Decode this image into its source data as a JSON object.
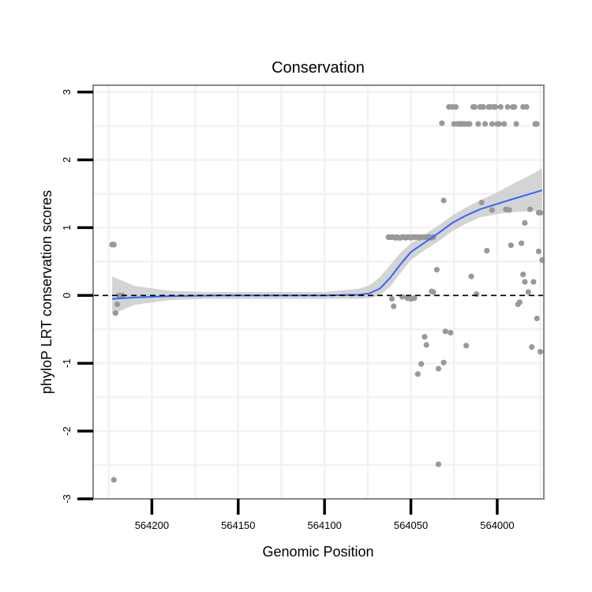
{
  "chart_data": {
    "type": "scatter",
    "title": "Conservation",
    "xlabel": "Genomic Position",
    "ylabel": "phyloP LRT conservation scores",
    "x_reversed": true,
    "xlim": [
      563973,
      564234
    ],
    "ylim": [
      -3,
      3.1
    ],
    "xticks": [
      564200,
      564150,
      564100,
      564050,
      564000
    ],
    "xtick_labels": [
      "564200",
      "564150",
      "564100",
      "564050",
      "564000"
    ],
    "yticks": [
      -3,
      -2,
      -1,
      0,
      1,
      2,
      3
    ],
    "ytick_labels": [
      "-3",
      "-2",
      "-1",
      "0",
      "1",
      "2",
      "3"
    ],
    "reference_line": {
      "y": 0,
      "style": "dashed"
    },
    "colors": {
      "points": "#999999",
      "smooth_line": "#3366ff",
      "ribbon": "#cccccc",
      "panel_border": "#888888",
      "grid": "#f2f2f2"
    },
    "points": [
      [
        564223,
        0.75
      ],
      [
        564222,
        0.75
      ],
      [
        564222,
        -2.72
      ],
      [
        564221,
        -0.26
      ],
      [
        564220,
        -0.13
      ],
      [
        564219,
        0.0
      ],
      [
        564218,
        0.0
      ],
      [
        564217,
        0.0
      ],
      [
        564063,
        0.86
      ],
      [
        564062,
        0.86
      ],
      [
        564061,
        0.86
      ],
      [
        564060,
        0.86
      ],
      [
        564059,
        0.85
      ],
      [
        564058,
        0.86
      ],
      [
        564057,
        0.85
      ],
      [
        564056,
        0.85
      ],
      [
        564055,
        0.86
      ],
      [
        564054,
        0.86
      ],
      [
        564053,
        0.85
      ],
      [
        564052,
        0.86
      ],
      [
        564051,
        0.86
      ],
      [
        564050,
        0.85
      ],
      [
        564049,
        0.86
      ],
      [
        564048,
        0.86
      ],
      [
        564047,
        0.86
      ],
      [
        564046,
        0.86
      ],
      [
        564045,
        0.85
      ],
      [
        564044,
        0.86
      ],
      [
        564043,
        0.86
      ],
      [
        564042,
        0.86
      ],
      [
        564041,
        0.86
      ],
      [
        564040,
        0.86
      ],
      [
        564039,
        0.86
      ],
      [
        564038,
        0.85
      ],
      [
        564037,
        0.86
      ],
      [
        564061,
        -0.05
      ],
      [
        564060,
        -0.16
      ],
      [
        564055,
        -0.02
      ],
      [
        564052,
        -0.04
      ],
      [
        564050,
        -0.05
      ],
      [
        564048,
        -0.04
      ],
      [
        564046,
        -1.16
      ],
      [
        564044,
        -1.01
      ],
      [
        564042,
        -0.61
      ],
      [
        564041,
        -0.73
      ],
      [
        564038,
        0.06
      ],
      [
        564037,
        0.05
      ],
      [
        564035,
        0.38
      ],
      [
        564034,
        -1.08
      ],
      [
        564034,
        -2.49
      ],
      [
        564032,
        2.54
      ],
      [
        564031,
        1.4
      ],
      [
        564031,
        -0.99
      ],
      [
        564030,
        -0.53
      ],
      [
        564028,
        2.78
      ],
      [
        564027,
        -0.55
      ],
      [
        564026,
        2.78
      ],
      [
        564025,
        2.53
      ],
      [
        564024,
        2.78
      ],
      [
        564023,
        2.53
      ],
      [
        564022,
        2.53
      ],
      [
        564021,
        2.53
      ],
      [
        564020,
        2.53
      ],
      [
        564019,
        2.53
      ],
      [
        564018,
        -0.74
      ],
      [
        564017,
        2.53
      ],
      [
        564016,
        2.53
      ],
      [
        564015,
        0.28
      ],
      [
        564014,
        2.78
      ],
      [
        564013,
        2.78
      ],
      [
        564012,
        0.02
      ],
      [
        564011,
        2.53
      ],
      [
        564010,
        2.78
      ],
      [
        564009,
        2.78
      ],
      [
        564009,
        1.37
      ],
      [
        564008,
        2.78
      ],
      [
        564007,
        2.53
      ],
      [
        564006,
        0.66
      ],
      [
        564005,
        2.78
      ],
      [
        564004,
        2.78
      ],
      [
        564003,
        2.53
      ],
      [
        564003,
        1.26
      ],
      [
        564002,
        2.78
      ],
      [
        564001,
        2.78
      ],
      [
        564000,
        2.53
      ],
      [
        563999,
        2.53
      ],
      [
        563998,
        2.78
      ],
      [
        563996,
        2.53
      ],
      [
        563995,
        1.27
      ],
      [
        563994,
        2.78
      ],
      [
        563993,
        1.26
      ],
      [
        563992,
        0.74
      ],
      [
        563991,
        2.78
      ],
      [
        563990,
        2.78
      ],
      [
        563989,
        2.53
      ],
      [
        563988,
        -0.13
      ],
      [
        563987,
        -0.1
      ],
      [
        563986,
        0.77
      ],
      [
        563985,
        0.31
      ],
      [
        563985,
        2.78
      ],
      [
        563984,
        1.07
      ],
      [
        563984,
        0.2
      ],
      [
        563983,
        2.78
      ],
      [
        563982,
        0.05
      ],
      [
        563981,
        1.27
      ],
      [
        563980,
        -0.76
      ],
      [
        563979,
        0.2
      ],
      [
        563978,
        2.53
      ],
      [
        563978,
        2.53
      ],
      [
        563977,
        -0.34
      ],
      [
        563977,
        2.53
      ],
      [
        563976,
        1.22
      ],
      [
        563976,
        0.65
      ],
      [
        563975,
        1.22
      ],
      [
        563975,
        -0.83
      ],
      [
        563974,
        0.52
      ]
    ],
    "smooth_line": [
      [
        564223,
        -0.05
      ],
      [
        564210,
        -0.03
      ],
      [
        564190,
        -0.01
      ],
      [
        564160,
        0.0
      ],
      [
        564130,
        0.0
      ],
      [
        564100,
        0.0
      ],
      [
        564080,
        0.01
      ],
      [
        564074,
        0.03
      ],
      [
        564068,
        0.1
      ],
      [
        564062,
        0.26
      ],
      [
        564056,
        0.46
      ],
      [
        564050,
        0.64
      ],
      [
        564042,
        0.78
      ],
      [
        564034,
        0.92
      ],
      [
        564026,
        1.07
      ],
      [
        564018,
        1.18
      ],
      [
        564010,
        1.27
      ],
      [
        564000,
        1.35
      ],
      [
        563990,
        1.43
      ],
      [
        563982,
        1.49
      ],
      [
        563974,
        1.55
      ]
    ],
    "ribbon": [
      [
        564223,
        -0.28,
        0.28
      ],
      [
        564210,
        -0.14,
        0.14
      ],
      [
        564190,
        -0.07,
        0.07
      ],
      [
        564170,
        -0.05,
        0.05
      ],
      [
        564150,
        -0.05,
        0.05
      ],
      [
        564120,
        -0.05,
        0.05
      ],
      [
        564100,
        -0.05,
        0.05
      ],
      [
        564080,
        -0.05,
        0.1
      ],
      [
        564074,
        -0.04,
        0.15
      ],
      [
        564068,
        0.0,
        0.27
      ],
      [
        564062,
        0.13,
        0.45
      ],
      [
        564056,
        0.33,
        0.63
      ],
      [
        564050,
        0.52,
        0.77
      ],
      [
        564042,
        0.67,
        0.9
      ],
      [
        564034,
        0.8,
        1.03
      ],
      [
        564026,
        0.95,
        1.18
      ],
      [
        564018,
        1.06,
        1.3
      ],
      [
        564010,
        1.15,
        1.4
      ],
      [
        564000,
        1.2,
        1.52
      ],
      [
        563990,
        1.23,
        1.66
      ],
      [
        563982,
        1.24,
        1.76
      ],
      [
        563974,
        1.25,
        1.87
      ]
    ]
  }
}
